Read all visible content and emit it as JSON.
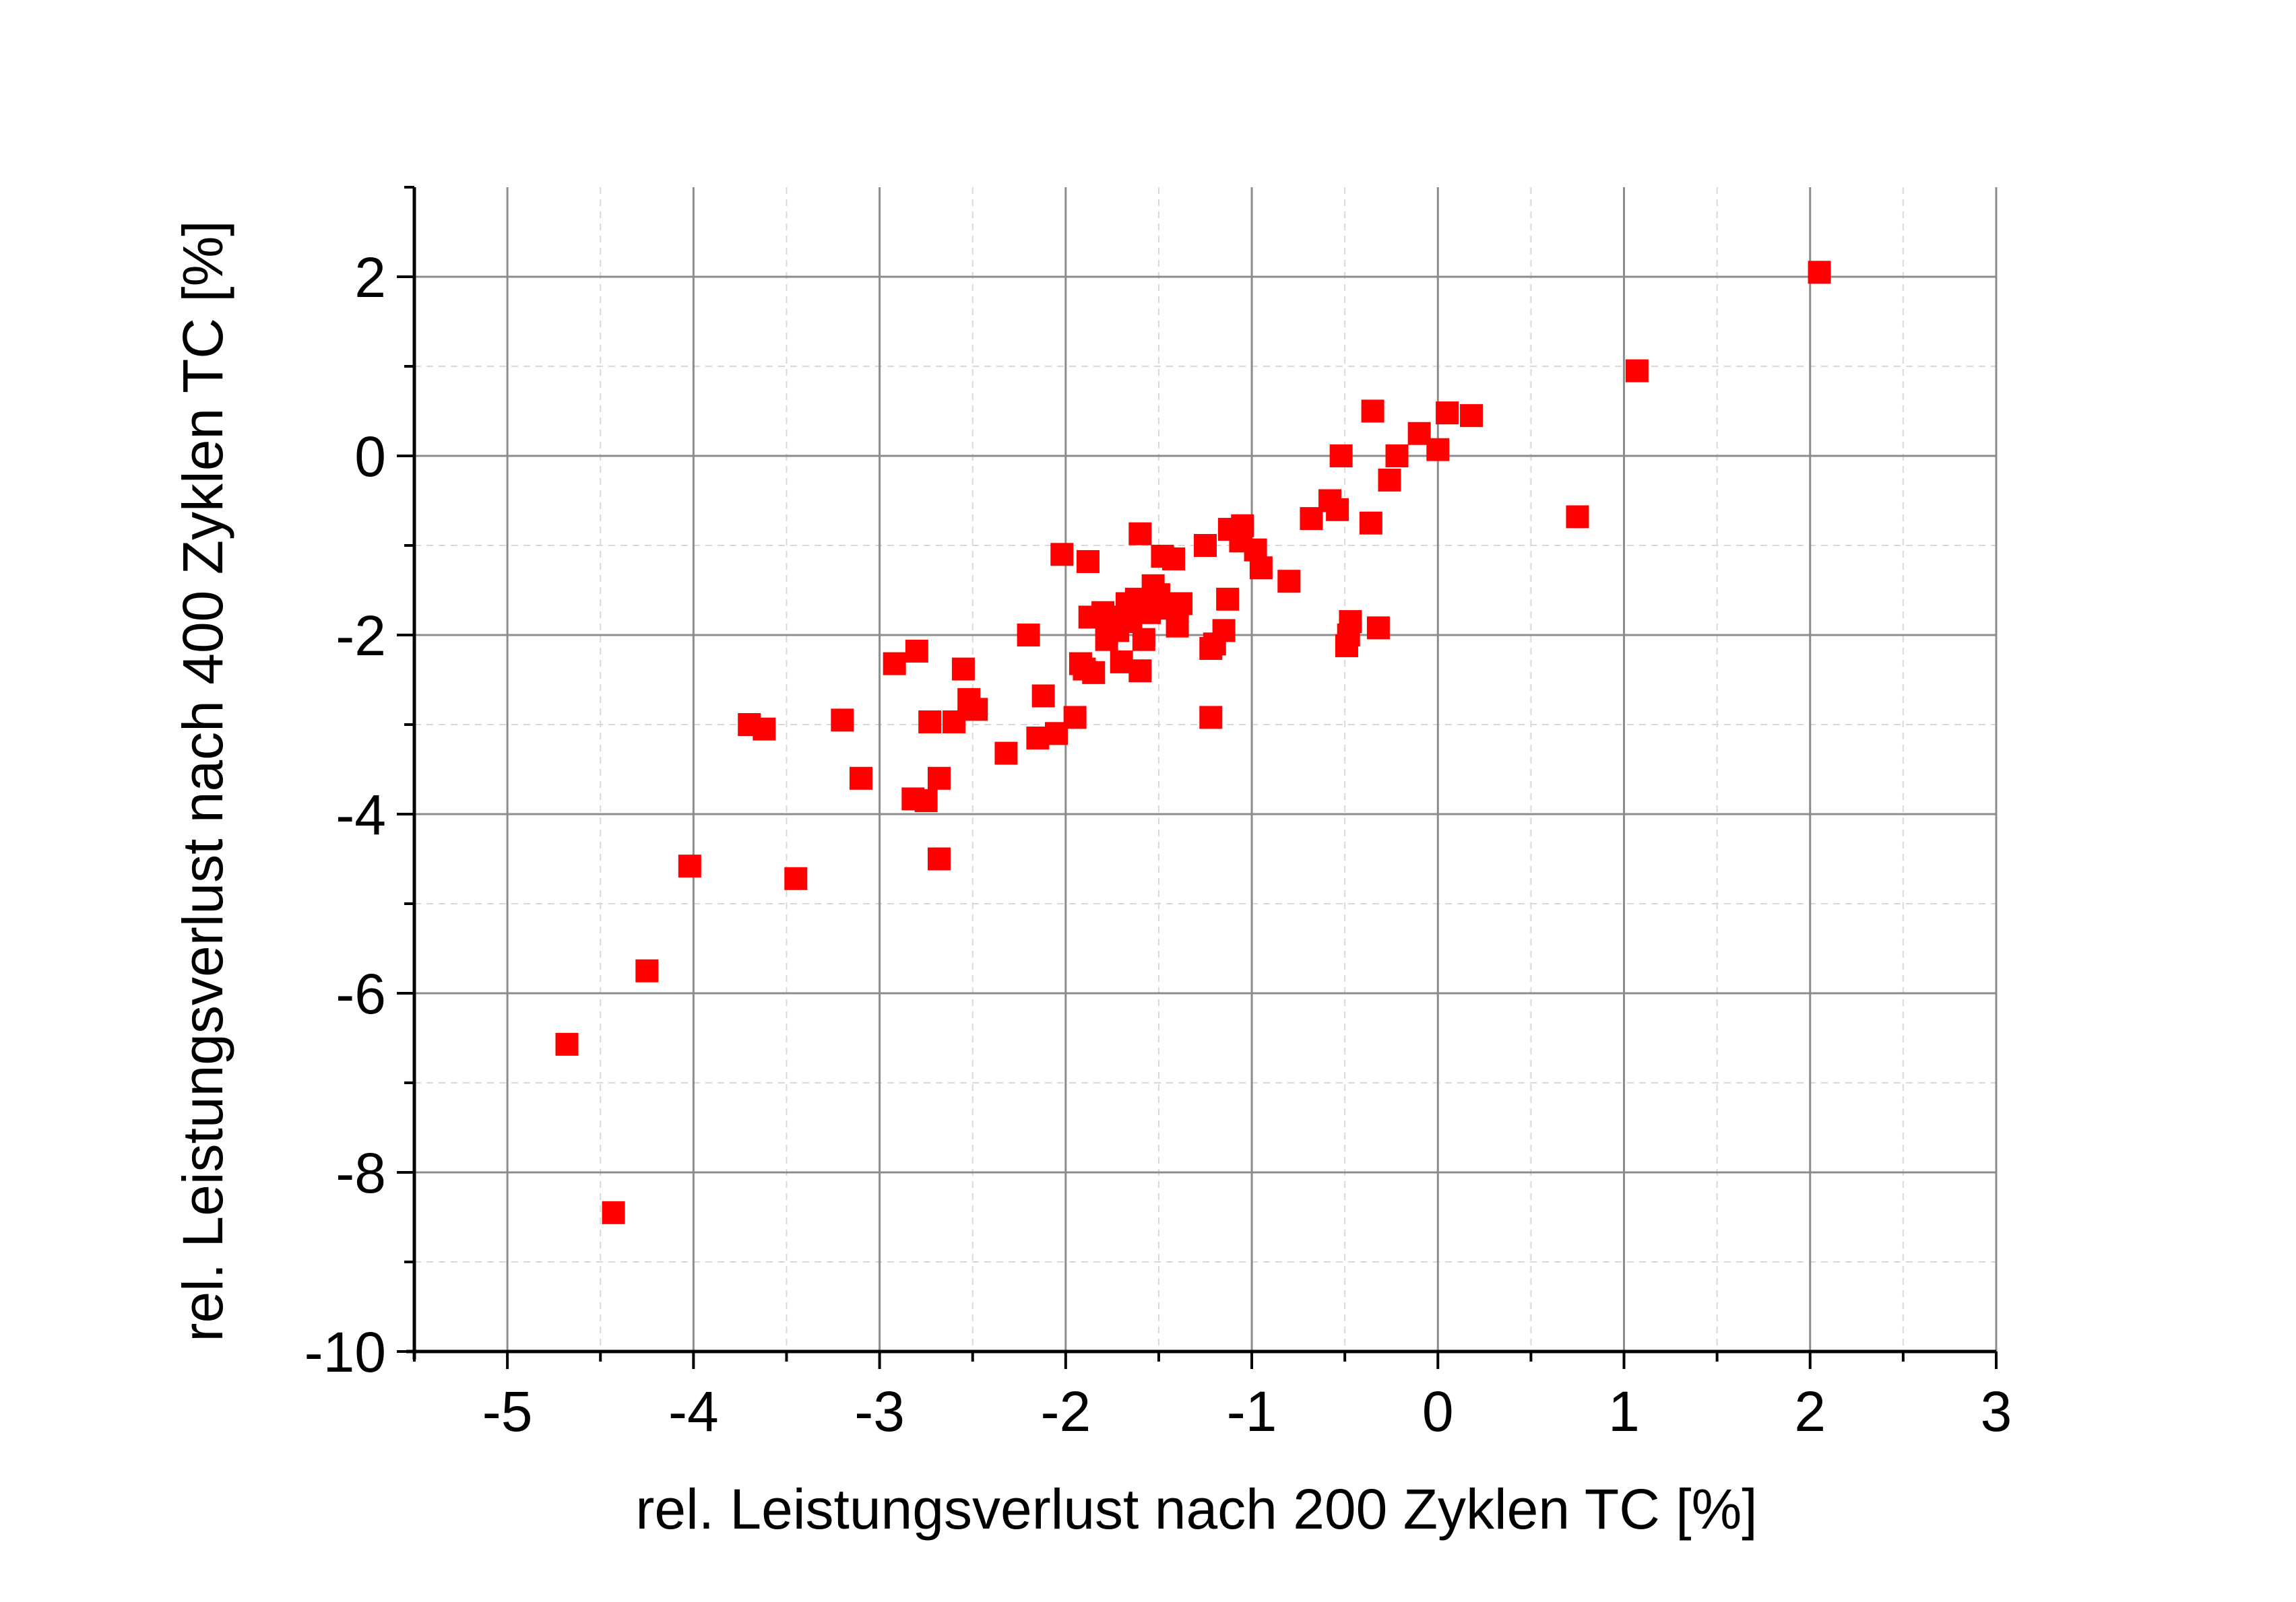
{
  "chart_data": {
    "type": "scatter",
    "title": "",
    "xlabel": "rel. Leistungsverlust nach 200 Zyklen TC [%]",
    "ylabel": "rel. Leistungsverlust nach 400 Zyklen TC [%]",
    "xlim": [
      -5.5,
      3
    ],
    "ylim": [
      -10,
      3
    ],
    "xticks": [
      -5,
      -4,
      -3,
      -2,
      -1,
      0,
      1,
      2,
      3
    ],
    "yticks": [
      -10,
      -8,
      -6,
      -4,
      -2,
      0,
      2
    ],
    "xtick_labels": [
      "-5",
      "-4",
      "-3",
      "-2",
      "-1",
      "0",
      "1",
      "2",
      "3"
    ],
    "ytick_labels": [
      "-10",
      "-8",
      "-6",
      "-4",
      "-2",
      "0",
      "2"
    ],
    "grid": true,
    "marker": "square",
    "marker_color": "#ff0000",
    "series": [
      {
        "points": [
          [
            2.05,
            2.05
          ],
          [
            1.07,
            0.95
          ],
          [
            0.75,
            -0.68
          ],
          [
            0.18,
            0.45
          ],
          [
            0.05,
            0.48
          ],
          [
            0.0,
            0.07
          ],
          [
            -0.1,
            0.25
          ],
          [
            -0.22,
            0.0
          ],
          [
            -0.26,
            -0.27
          ],
          [
            -0.35,
            0.5
          ],
          [
            -0.36,
            -0.75
          ],
          [
            -0.32,
            -1.92
          ],
          [
            -0.47,
            -1.85
          ],
          [
            -0.48,
            -2.0
          ],
          [
            -0.49,
            -2.12
          ],
          [
            -0.52,
            0.0
          ],
          [
            -0.54,
            -0.6
          ],
          [
            -0.58,
            -0.5
          ],
          [
            -0.68,
            -0.7
          ],
          [
            -0.8,
            -1.4
          ],
          [
            -0.95,
            -1.25
          ],
          [
            -0.98,
            -1.05
          ],
          [
            -1.05,
            -0.78
          ],
          [
            -1.06,
            -0.95
          ],
          [
            -1.12,
            -0.82
          ],
          [
            -1.13,
            -1.6
          ],
          [
            -1.15,
            -1.95
          ],
          [
            -1.2,
            -2.1
          ],
          [
            -1.22,
            -2.92
          ],
          [
            -1.22,
            -2.15
          ],
          [
            -1.25,
            -1.0
          ],
          [
            -1.38,
            -1.65
          ],
          [
            -1.4,
            -1.9
          ],
          [
            -1.42,
            -1.15
          ],
          [
            -1.46,
            -1.7
          ],
          [
            -1.48,
            -1.12
          ],
          [
            -1.5,
            -1.55
          ],
          [
            -1.53,
            -1.45
          ],
          [
            -1.55,
            -1.75
          ],
          [
            -1.58,
            -2.05
          ],
          [
            -1.6,
            -2.4
          ],
          [
            -1.6,
            -0.87
          ],
          [
            -1.62,
            -1.6
          ],
          [
            -1.65,
            -1.85
          ],
          [
            -1.67,
            -1.65
          ],
          [
            -1.7,
            -2.3
          ],
          [
            -1.72,
            -1.95
          ],
          [
            -1.75,
            -1.8
          ],
          [
            -1.78,
            -2.05
          ],
          [
            -1.8,
            -1.75
          ],
          [
            -1.85,
            -2.42
          ],
          [
            -1.87,
            -1.8
          ],
          [
            -1.88,
            -1.18
          ],
          [
            -1.9,
            -2.38
          ],
          [
            -1.92,
            -2.32
          ],
          [
            -1.95,
            -2.92
          ],
          [
            -2.02,
            -1.1
          ],
          [
            -2.05,
            -3.1
          ],
          [
            -2.12,
            -2.68
          ],
          [
            -2.15,
            -3.15
          ],
          [
            -2.2,
            -2.0
          ],
          [
            -2.32,
            -3.32
          ],
          [
            -2.48,
            -2.83
          ],
          [
            -2.52,
            -2.72
          ],
          [
            -2.55,
            -2.38
          ],
          [
            -2.6,
            -2.97
          ],
          [
            -2.68,
            -4.5
          ],
          [
            -2.68,
            -3.6
          ],
          [
            -2.73,
            -2.97
          ],
          [
            -2.75,
            -3.85
          ],
          [
            -2.8,
            -2.18
          ],
          [
            -2.82,
            -3.83
          ],
          [
            -2.92,
            -2.32
          ],
          [
            -3.1,
            -3.6
          ],
          [
            -3.2,
            -2.95
          ],
          [
            -3.45,
            -4.72
          ],
          [
            -3.62,
            -3.05
          ],
          [
            -3.7,
            -3.0
          ],
          [
            -4.02,
            -4.58
          ],
          [
            -4.25,
            -5.75
          ],
          [
            -4.43,
            -8.45
          ],
          [
            -4.68,
            -6.57
          ]
        ]
      }
    ]
  }
}
